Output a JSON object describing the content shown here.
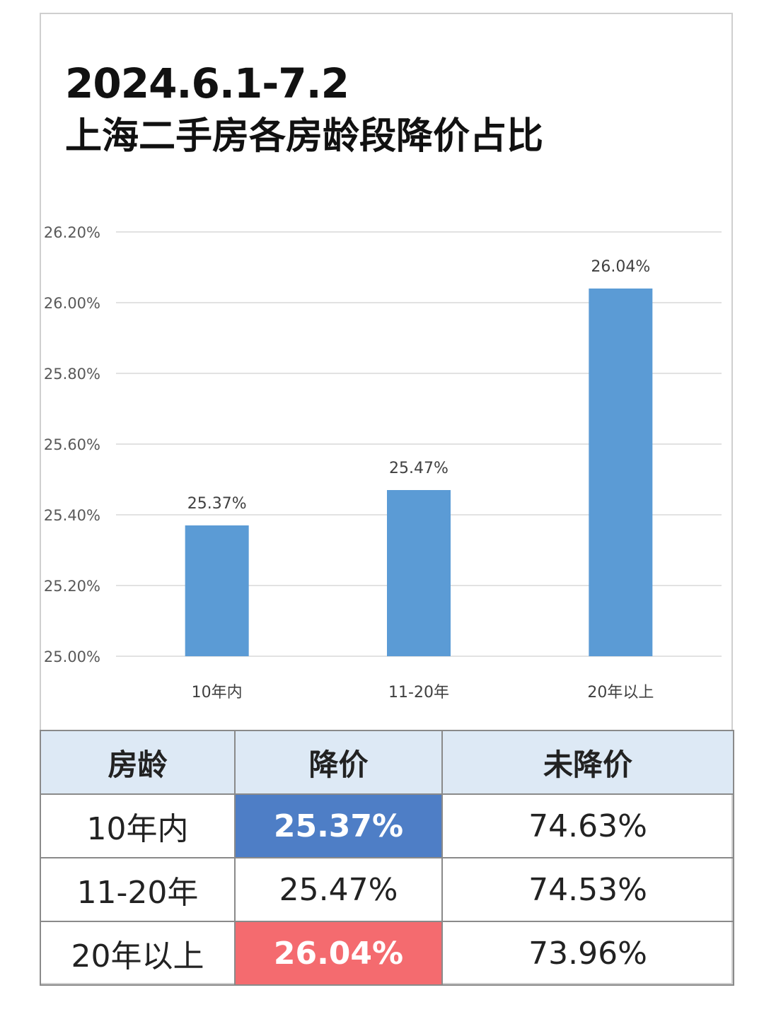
{
  "title": {
    "line1": "2024.6.1-7.2",
    "line2": "上海二手房各房龄段降价占比"
  },
  "chart_data": {
    "type": "bar",
    "title": "2024.6.1-7.2 上海二手房各房龄段降价占比",
    "categories": [
      "10年内",
      "11-20年",
      "20年以上"
    ],
    "values": [
      25.37,
      25.47,
      26.04
    ],
    "data_labels": [
      "25.37%",
      "25.47%",
      "26.04%"
    ],
    "ylim": [
      25.0,
      26.2
    ],
    "yticks": [
      25.0,
      25.2,
      25.4,
      25.6,
      25.8,
      26.0,
      26.2
    ],
    "ytick_labels": [
      "25.00%",
      "25.20%",
      "25.40%",
      "25.60%",
      "25.80%",
      "26.00%",
      "26.20%"
    ],
    "grid": true,
    "bar_color": "#5b9bd5"
  },
  "table": {
    "headers": [
      "房龄",
      "降价",
      "未降价"
    ],
    "rows": [
      [
        "10年内",
        "25.37%",
        "74.63%"
      ],
      [
        "11-20年",
        "25.47%",
        "74.53%"
      ],
      [
        "20年以上",
        "26.04%",
        "73.96%"
      ]
    ],
    "highlight_colors": {
      "blue": "#4e7ec6",
      "red": "#f46b6f"
    }
  }
}
